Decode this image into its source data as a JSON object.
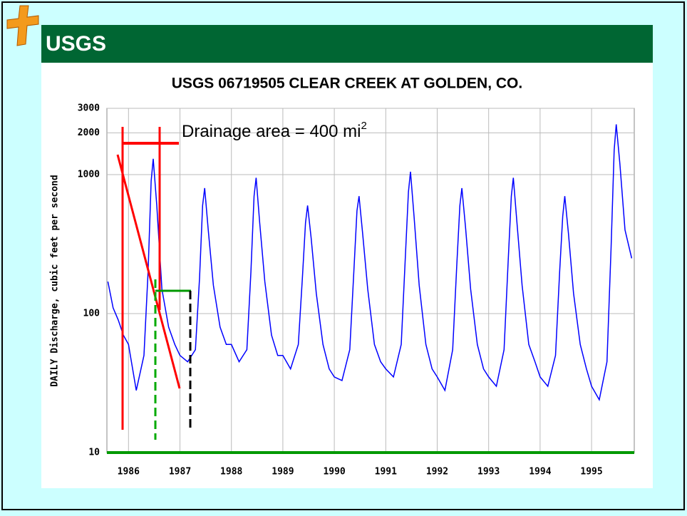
{
  "logo": "USGS",
  "chart_data": {
    "type": "line",
    "title": "USGS 06719505 CLEAR CREEK AT GOLDEN, CO.",
    "y_label": "DAILY Discharge, cubic feet per second",
    "annotation": {
      "text": "Drainage area = 400 mi",
      "sup": "2"
    },
    "log_y": true,
    "grid": true,
    "xlim": [
      1985.58,
      1995.83
    ],
    "ylim": [
      10,
      3000
    ],
    "xticks": [
      1986,
      1987,
      1988,
      1989,
      1990,
      1991,
      1992,
      1993,
      1994,
      1995
    ],
    "yticks": [
      10,
      100,
      1000,
      2000,
      3000
    ],
    "x": [
      1985.6,
      1985.7,
      1985.8,
      1985.9,
      1986.0,
      1986.15,
      1986.3,
      1986.38,
      1986.44,
      1986.48,
      1986.55,
      1986.65,
      1986.78,
      1986.9,
      1987.0,
      1987.15,
      1987.3,
      1987.38,
      1987.44,
      1987.48,
      1987.55,
      1987.65,
      1987.78,
      1987.9,
      1988.0,
      1988.15,
      1988.3,
      1988.38,
      1988.44,
      1988.48,
      1988.55,
      1988.65,
      1988.78,
      1988.9,
      1989.0,
      1989.15,
      1989.3,
      1989.38,
      1989.44,
      1989.48,
      1989.55,
      1989.65,
      1989.78,
      1989.9,
      1990.0,
      1990.15,
      1990.3,
      1990.38,
      1990.44,
      1990.48,
      1990.55,
      1990.65,
      1990.78,
      1990.9,
      1991.0,
      1991.15,
      1991.3,
      1991.38,
      1991.44,
      1991.48,
      1991.55,
      1991.65,
      1991.78,
      1991.9,
      1992.0,
      1992.15,
      1992.3,
      1992.38,
      1992.44,
      1992.48,
      1992.55,
      1992.65,
      1992.78,
      1992.9,
      1993.0,
      1993.15,
      1993.3,
      1993.38,
      1993.44,
      1993.48,
      1993.55,
      1993.65,
      1993.78,
      1993.9,
      1994.0,
      1994.15,
      1994.3,
      1994.38,
      1994.44,
      1994.48,
      1994.55,
      1994.65,
      1994.78,
      1994.9,
      1995.0,
      1995.15,
      1995.3,
      1995.38,
      1995.44,
      1995.48,
      1995.55,
      1995.65,
      1995.78
    ],
    "series": [
      {
        "color": "#0000ff",
        "values": [
          170,
          110,
          90,
          70,
          60,
          28,
          50,
          200,
          900,
          1300,
          600,
          150,
          80,
          60,
          50,
          45,
          55,
          180,
          600,
          800,
          400,
          160,
          80,
          60,
          60,
          45,
          55,
          200,
          700,
          950,
          450,
          170,
          70,
          50,
          50,
          40,
          60,
          180,
          450,
          600,
          350,
          140,
          60,
          40,
          35,
          33,
          55,
          200,
          550,
          700,
          380,
          150,
          60,
          45,
          40,
          35,
          60,
          250,
          750,
          1050,
          500,
          160,
          60,
          40,
          35,
          28,
          55,
          220,
          600,
          800,
          420,
          150,
          60,
          40,
          35,
          30,
          55,
          240,
          700,
          950,
          450,
          160,
          60,
          45,
          35,
          30,
          50,
          200,
          500,
          700,
          380,
          140,
          60,
          40,
          30,
          24,
          45,
          300,
          1500,
          2300,
          1200,
          400,
          250
        ]
      }
    ]
  }
}
